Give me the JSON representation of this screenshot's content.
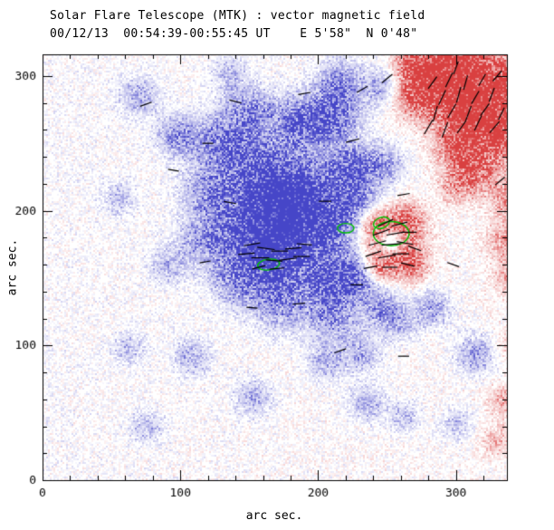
{
  "chart_data": {
    "type": "heatmap",
    "title": "Solar Flare Telescope (MTK) : vector magnetic field",
    "subtitle": "00/12/13  00:54:39-00:55:45 UT    E 5'58\"  N 0'48\"",
    "xlabel": "arc sec.",
    "ylabel": "arc sec.",
    "xlim": [
      0,
      337
    ],
    "ylim": [
      0,
      316
    ],
    "xticks": [
      0,
      100,
      200,
      300
    ],
    "yticks": [
      0,
      100,
      200,
      300
    ],
    "minor_tick_interval": 20,
    "noise_seed": 42,
    "colors": {
      "negative": "#4646c8",
      "positive": "#d94040",
      "contour": "#00c000",
      "vector": "#000000",
      "frame": "#000000",
      "background": "#ffffff"
    },
    "polarity_note": "blue = negative line-of-sight field, red = positive line-of-sight field",
    "blobs": [
      [
        165,
        168,
        16,
        1.6,
        -1
      ],
      [
        182,
        190,
        16,
        1.3,
        -1
      ],
      [
        150,
        198,
        18,
        1.0,
        -1
      ],
      [
        192,
        215,
        16,
        1.0,
        -1
      ],
      [
        175,
        210,
        14,
        1.0,
        -1
      ],
      [
        160,
        232,
        14,
        0.9,
        -1
      ],
      [
        132,
        250,
        15,
        0.9,
        -1
      ],
      [
        186,
        264,
        14,
        1.0,
        -1
      ],
      [
        212,
        270,
        12,
        0.9,
        -1
      ],
      [
        224,
        232,
        13,
        0.9,
        -1
      ],
      [
        226,
        205,
        12,
        0.7,
        -1
      ],
      [
        210,
        185,
        12,
        0.8,
        -1
      ],
      [
        206,
        148,
        14,
        0.9,
        -1
      ],
      [
        228,
        152,
        12,
        0.8,
        -1
      ],
      [
        172,
        132,
        14,
        0.7,
        -1
      ],
      [
        140,
        148,
        13,
        0.6,
        -1
      ],
      [
        118,
        178,
        14,
        0.6,
        -1
      ],
      [
        120,
        215,
        13,
        0.6,
        -1
      ],
      [
        98,
        256,
        10,
        0.7,
        -1
      ],
      [
        150,
        275,
        12,
        0.7,
        -1
      ],
      [
        70,
        285,
        10,
        0.5,
        -1
      ],
      [
        215,
        295,
        12,
        0.7,
        -1
      ],
      [
        245,
        292,
        9,
        0.5,
        -1
      ],
      [
        135,
        302,
        9,
        0.4,
        -1
      ],
      [
        210,
        120,
        12,
        0.6,
        -1
      ],
      [
        245,
        128,
        10,
        0.6,
        -1
      ],
      [
        258,
        118,
        9,
        0.5,
        -1
      ],
      [
        282,
        128,
        9,
        0.6,
        -1
      ],
      [
        230,
        95,
        10,
        0.5,
        -1
      ],
      [
        205,
        88,
        9,
        0.5,
        -1
      ],
      [
        108,
        92,
        9,
        0.5,
        -1
      ],
      [
        62,
        98,
        8,
        0.4,
        -1
      ],
      [
        152,
        62,
        9,
        0.5,
        -1
      ],
      [
        235,
        58,
        9,
        0.5,
        -1
      ],
      [
        262,
        48,
        8,
        0.4,
        -1
      ],
      [
        300,
        42,
        8,
        0.4,
        -1
      ],
      [
        314,
        94,
        10,
        0.6,
        -1
      ],
      [
        75,
        40,
        8,
        0.4,
        -1
      ],
      [
        248,
        235,
        10,
        0.5,
        -1
      ],
      [
        90,
        160,
        9,
        0.4,
        -1
      ],
      [
        55,
        210,
        8,
        0.4,
        -1
      ],
      [
        300,
        290,
        18,
        1.4,
        1
      ],
      [
        318,
        272,
        15,
        1.3,
        1
      ],
      [
        284,
        302,
        12,
        1.2,
        1
      ],
      [
        335,
        255,
        13,
        1.0,
        1
      ],
      [
        332,
        300,
        12,
        1.1,
        1
      ],
      [
        302,
        247,
        12,
        0.9,
        1
      ],
      [
        270,
        285,
        10,
        0.8,
        1
      ],
      [
        268,
        310,
        9,
        0.8,
        1
      ],
      [
        305,
        312,
        10,
        1.0,
        1
      ],
      [
        315,
        230,
        11,
        0.7,
        1
      ],
      [
        338,
        210,
        10,
        0.6,
        1
      ],
      [
        336,
        178,
        10,
        0.6,
        1
      ],
      [
        340,
        150,
        9,
        0.5,
        1
      ],
      [
        300,
        218,
        9,
        0.5,
        1
      ],
      [
        254,
        176,
        14,
        1.1,
        1
      ],
      [
        243,
        158,
        8,
        0.7,
        1
      ],
      [
        268,
        160,
        8,
        0.6,
        1
      ],
      [
        240,
        192,
        8,
        0.6,
        1
      ],
      [
        265,
        195,
        8,
        0.7,
        1
      ],
      [
        335,
        60,
        8,
        0.5,
        1
      ],
      [
        340,
        100,
        8,
        0.4,
        1
      ],
      [
        330,
        30,
        8,
        0.4,
        1
      ],
      [
        252,
        177,
        7,
        1.3,
        0
      ]
    ],
    "vectors": [
      [
        148,
        168,
        12,
        5
      ],
      [
        158,
        165,
        13,
        0
      ],
      [
        168,
        163,
        12,
        -5
      ],
      [
        178,
        164,
        13,
        8
      ],
      [
        188,
        166,
        12,
        0
      ],
      [
        152,
        175,
        12,
        10
      ],
      [
        162,
        172,
        13,
        -8
      ],
      [
        172,
        170,
        12,
        0
      ],
      [
        182,
        172,
        12,
        5
      ],
      [
        190,
        175,
        11,
        -5
      ],
      [
        157,
        158,
        10,
        15
      ],
      [
        170,
        157,
        11,
        5
      ],
      [
        240,
        168,
        12,
        20
      ],
      [
        250,
        166,
        13,
        10
      ],
      [
        260,
        168,
        12,
        0
      ],
      [
        243,
        176,
        13,
        15
      ],
      [
        253,
        175,
        14,
        5
      ],
      [
        263,
        176,
        12,
        -10
      ],
      [
        246,
        184,
        13,
        20
      ],
      [
        256,
        183,
        13,
        10
      ],
      [
        266,
        184,
        11,
        0
      ],
      [
        249,
        191,
        12,
        25
      ],
      [
        259,
        190,
        12,
        15
      ],
      [
        238,
        158,
        10,
        10
      ],
      [
        252,
        158,
        11,
        0
      ],
      [
        265,
        160,
        10,
        -15
      ],
      [
        270,
        172,
        10,
        -20
      ],
      [
        280,
        262,
        12,
        60
      ],
      [
        292,
        260,
        12,
        70
      ],
      [
        304,
        262,
        11,
        55
      ],
      [
        316,
        265,
        12,
        65
      ],
      [
        328,
        262,
        11,
        50
      ],
      [
        285,
        272,
        12,
        75
      ],
      [
        297,
        274,
        12,
        60
      ],
      [
        309,
        272,
        12,
        70
      ],
      [
        321,
        275,
        11,
        55
      ],
      [
        333,
        272,
        10,
        65
      ],
      [
        290,
        284,
        12,
        65
      ],
      [
        302,
        286,
        12,
        75
      ],
      [
        314,
        284,
        11,
        60
      ],
      [
        326,
        286,
        11,
        70
      ],
      [
        283,
        295,
        11,
        55
      ],
      [
        295,
        297,
        12,
        65
      ],
      [
        307,
        295,
        11,
        75
      ],
      [
        319,
        297,
        10,
        60
      ],
      [
        300,
        306,
        10,
        70
      ],
      [
        330,
        300,
        10,
        50
      ],
      [
        75,
        279,
        9,
        20
      ],
      [
        140,
        281,
        9,
        -15
      ],
      [
        190,
        287,
        9,
        10
      ],
      [
        232,
        290,
        9,
        30
      ],
      [
        250,
        298,
        10,
        40
      ],
      [
        225,
        252,
        10,
        15
      ],
      [
        205,
        207,
        9,
        0
      ],
      [
        136,
        206,
        9,
        -10
      ],
      [
        118,
        162,
        8,
        10
      ],
      [
        186,
        131,
        9,
        5
      ],
      [
        152,
        128,
        8,
        -5
      ],
      [
        216,
        96,
        9,
        20
      ],
      [
        262,
        92,
        8,
        0
      ],
      [
        298,
        160,
        9,
        -20
      ],
      [
        332,
        222,
        9,
        40
      ],
      [
        262,
        212,
        9,
        10
      ],
      [
        228,
        145,
        9,
        0
      ],
      [
        120,
        250,
        8,
        0
      ],
      [
        95,
        230,
        8,
        -10
      ]
    ],
    "contours": [
      [
        253,
        183,
        13,
        9,
        0
      ],
      [
        246,
        191,
        6,
        4,
        20
      ],
      [
        220,
        187,
        6,
        3.5,
        0
      ],
      [
        164,
        160,
        8,
        4,
        8
      ]
    ]
  }
}
